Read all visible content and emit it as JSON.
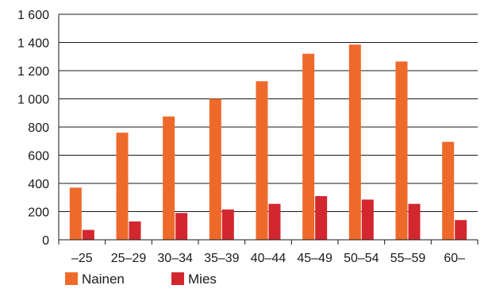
{
  "chart_data": {
    "type": "bar",
    "title": "",
    "xlabel": "",
    "ylabel": "",
    "categories": [
      "–25",
      "25–29",
      "30–34",
      "35–39",
      "40–44",
      "45–49",
      "50–54",
      "55–59",
      "60–"
    ],
    "series": [
      {
        "name": "Nainen",
        "color": "#EE6A2B",
        "values": [
          370,
          760,
          875,
          1000,
          1125,
          1320,
          1385,
          1265,
          695
        ]
      },
      {
        "name": "Mies",
        "color": "#D3272F",
        "values": [
          70,
          130,
          190,
          215,
          255,
          310,
          285,
          255,
          140
        ]
      }
    ],
    "ylim": [
      0,
      1600
    ],
    "yticks": [
      0,
      200,
      400,
      600,
      800,
      1000,
      1200,
      1400,
      1600
    ],
    "ytick_labels": [
      "0",
      "200",
      "400",
      "600",
      "800",
      "1 000",
      "1 200",
      "1 400",
      "1 600"
    ],
    "grid": true,
    "legend_position": "bottom-left"
  }
}
